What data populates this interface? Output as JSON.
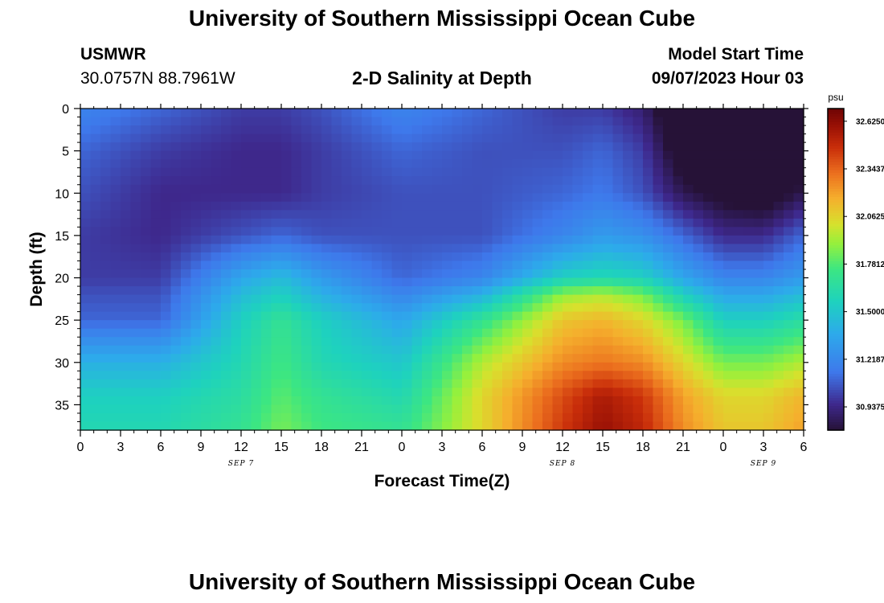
{
  "header": {
    "title": "University of Southern Mississippi Ocean Cube",
    "station": "USMWR",
    "coords": "30.0757N  88.7961W",
    "plot_title": "2-D Salinity at Depth",
    "model_start_label": "Model Start Time",
    "model_start_value": "09/07/2023 Hour 03"
  },
  "footer": {
    "title": "University of Southern Mississippi Ocean Cube"
  },
  "chart_data": {
    "type": "heatmap",
    "title": "2-D Salinity at Depth",
    "xlabel": "Forecast Time(Z)",
    "ylabel": "Depth (ft)",
    "x_tick_labels": [
      "0",
      "3",
      "6",
      "9",
      "12",
      "15",
      "18",
      "21",
      "0",
      "3",
      "6",
      "9",
      "12",
      "15",
      "18",
      "21",
      "0",
      "3",
      "6"
    ],
    "x_hours_range": [
      0,
      54
    ],
    "date_labels": [
      {
        "label": "SEP 7",
        "hour": 12
      },
      {
        "label": "SEP 8",
        "hour": 36
      },
      {
        "label": "SEP 9",
        "hour": 51
      }
    ],
    "y_ticks": [
      0,
      5,
      10,
      15,
      20,
      25,
      30,
      35
    ],
    "ylim": [
      0,
      38
    ],
    "y_reversed": true,
    "colorbar": {
      "unit": "psu",
      "min": 30.8,
      "max": 32.7,
      "tick_values": [
        32.625,
        32.34375,
        32.0625,
        31.78125,
        31.5,
        31.21875,
        30.9375
      ],
      "tick_labels": [
        "32.6250",
        "32.3437",
        "32.0625",
        "31.7812",
        "31.5000",
        "31.2187",
        "30.9375"
      ]
    },
    "grid": {
      "hours": [
        0,
        6,
        12,
        15,
        18,
        24,
        30,
        36,
        39,
        42,
        45,
        48,
        51,
        54
      ],
      "depths": [
        0,
        5,
        10,
        15,
        20,
        22,
        25,
        30,
        34,
        38
      ],
      "values": [
        [
          31.2,
          31.1,
          31.0,
          31.0,
          31.05,
          31.2,
          31.1,
          31.0,
          31.0,
          30.9,
          30.6,
          30.6,
          30.4,
          30.6
        ],
        [
          31.1,
          31.0,
          30.95,
          30.95,
          31.0,
          31.1,
          31.05,
          31.05,
          31.1,
          31.0,
          30.7,
          30.65,
          30.5,
          30.65
        ],
        [
          31.05,
          30.95,
          30.95,
          30.95,
          31.0,
          31.05,
          31.05,
          31.1,
          31.15,
          31.05,
          30.85,
          30.75,
          30.7,
          30.85
        ],
        [
          31.0,
          30.95,
          31.05,
          31.1,
          31.05,
          31.05,
          31.05,
          31.2,
          31.3,
          31.25,
          31.1,
          30.95,
          30.95,
          31.1
        ],
        [
          31.0,
          31.0,
          31.35,
          31.45,
          31.3,
          31.1,
          31.2,
          31.55,
          31.6,
          31.55,
          31.35,
          31.2,
          31.2,
          31.3
        ],
        [
          31.05,
          31.05,
          31.45,
          31.55,
          31.4,
          31.2,
          31.4,
          31.9,
          31.95,
          31.85,
          31.55,
          31.35,
          31.35,
          31.45
        ],
        [
          31.1,
          31.1,
          31.55,
          31.7,
          31.55,
          31.35,
          31.7,
          32.1,
          32.15,
          32.05,
          31.85,
          31.55,
          31.55,
          31.65
        ],
        [
          31.4,
          31.4,
          31.6,
          31.75,
          31.6,
          31.5,
          31.95,
          32.25,
          32.3,
          32.25,
          32.05,
          31.85,
          31.85,
          31.95
        ],
        [
          31.55,
          31.55,
          31.65,
          31.8,
          31.7,
          31.6,
          32.05,
          32.4,
          32.55,
          32.45,
          32.2,
          32.05,
          32.05,
          32.15
        ],
        [
          31.6,
          31.6,
          31.7,
          31.85,
          31.75,
          31.7,
          32.05,
          32.45,
          32.6,
          32.5,
          32.25,
          32.1,
          32.1,
          32.2
        ]
      ]
    }
  }
}
